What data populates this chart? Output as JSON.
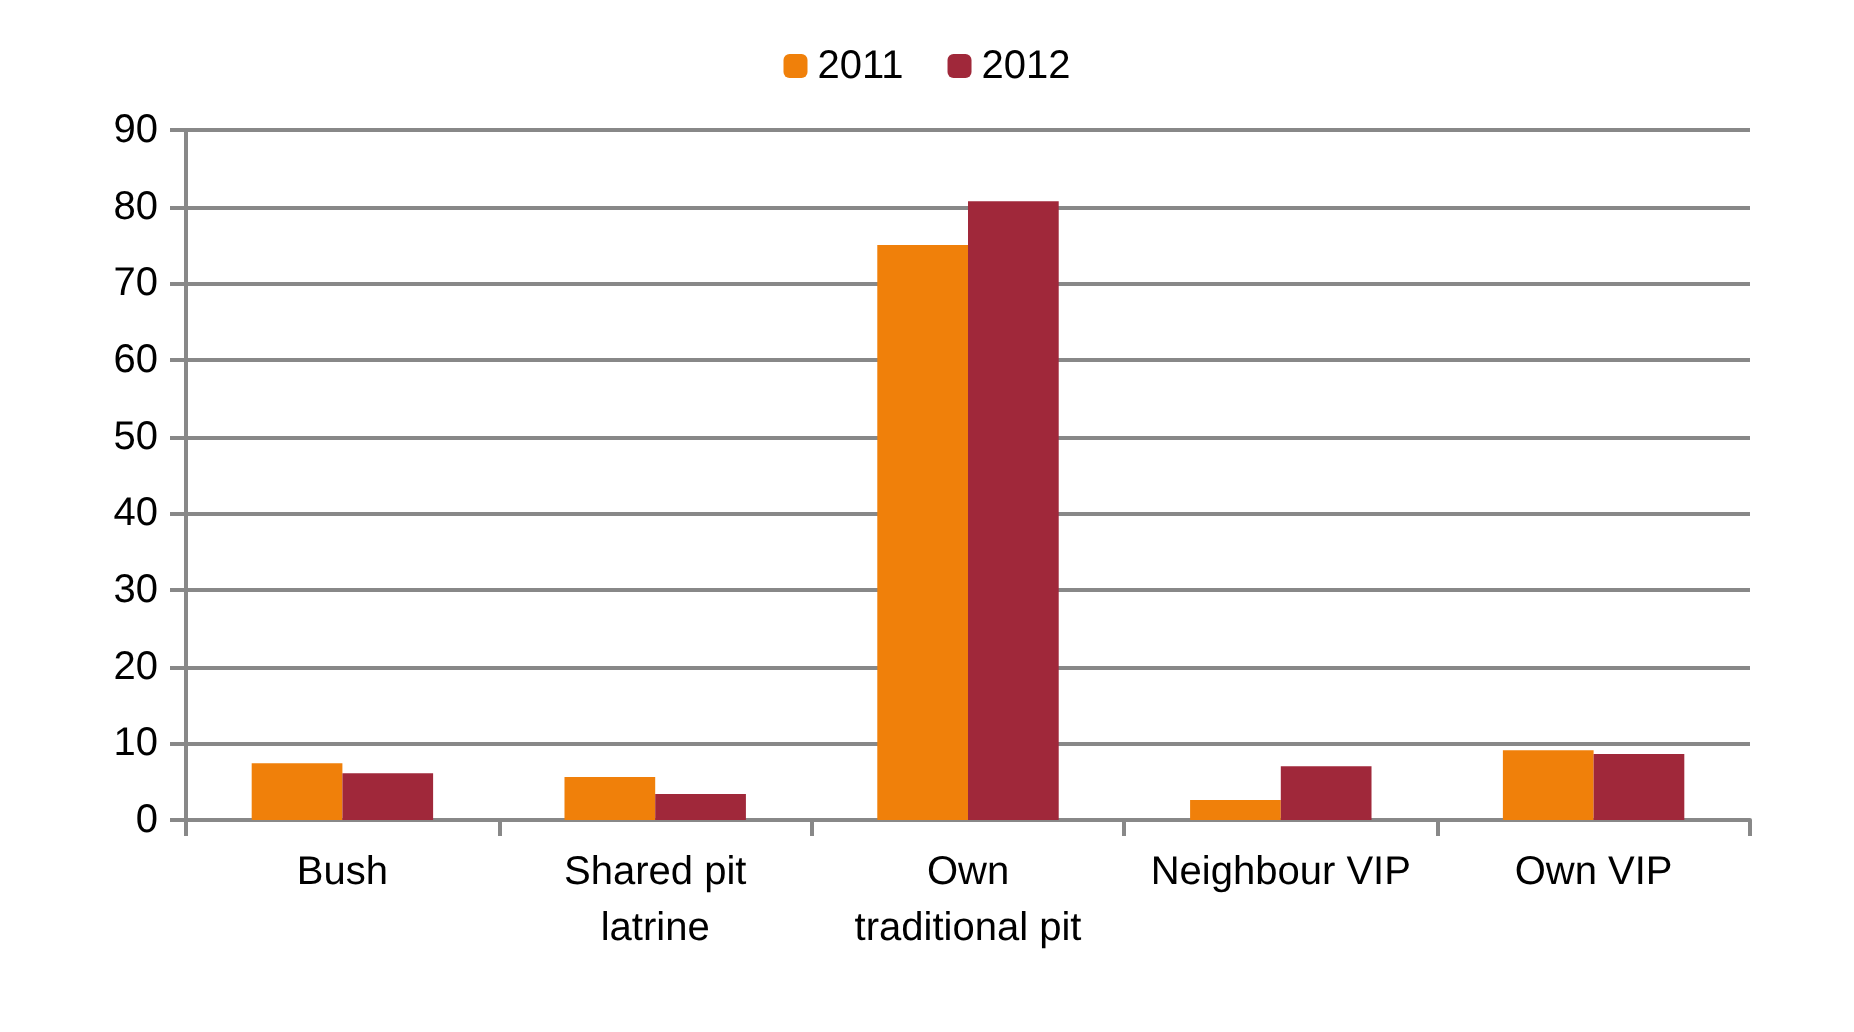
{
  "chart_data": {
    "type": "bar",
    "categories": [
      "Bush",
      "Shared pit\nlatrine",
      "Own\ntraditional pit",
      "Neighbour VIP",
      "Own VIP"
    ],
    "series": [
      {
        "name": "2011",
        "color": "#f0800a",
        "values": [
          7.4,
          5.6,
          75,
          2.6,
          9.1
        ]
      },
      {
        "name": "2012",
        "color": "#a0283a",
        "values": [
          6.1,
          3.4,
          80.7,
          7.0,
          8.6
        ]
      }
    ],
    "ylim": [
      0,
      90
    ],
    "yticks": [
      0,
      10,
      20,
      30,
      40,
      50,
      60,
      70,
      80,
      90
    ],
    "grid": "y",
    "legend": "top"
  }
}
